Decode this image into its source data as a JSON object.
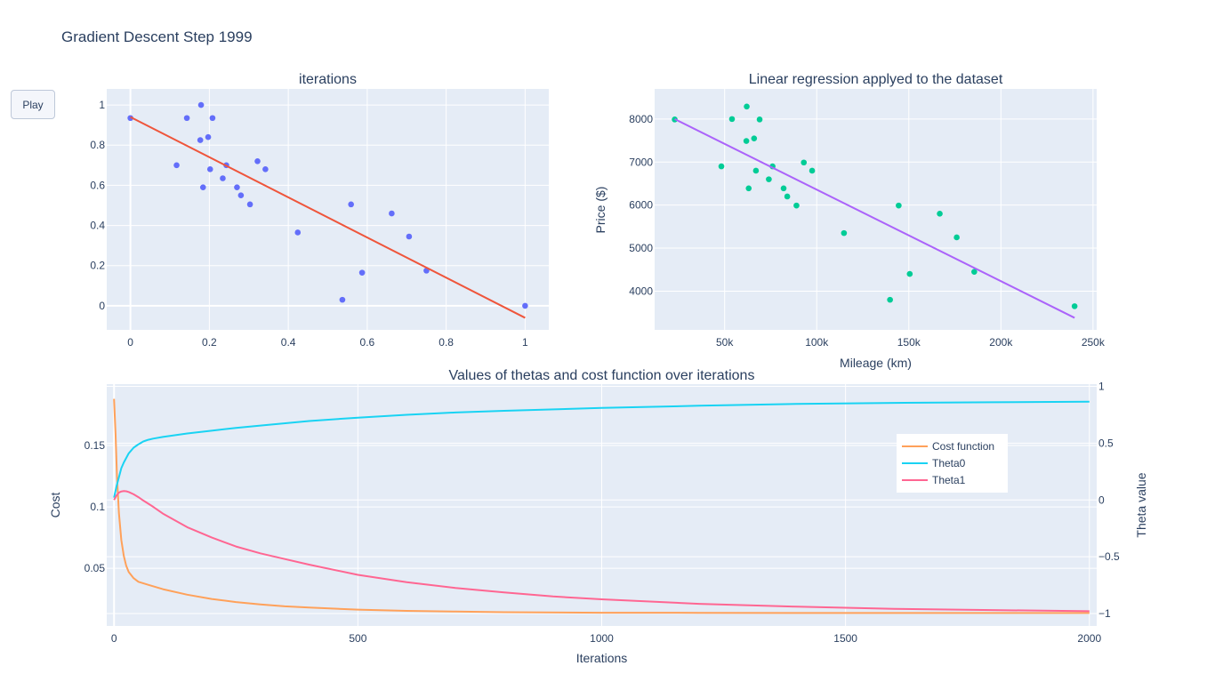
{
  "figure_title": "Gradient Descent Step 1999",
  "play_label": "Play",
  "colors": {
    "plot_bg": "#e5ecf6",
    "grid": "#ffffff",
    "points_left": "#636efa",
    "line_left": "#ef553b",
    "points_right": "#00cc96",
    "line_right": "#ab63fa",
    "cost": "#ffa15a",
    "theta0": "#19d3f3",
    "theta1": "#ff6692"
  },
  "chart_data": [
    {
      "type": "scatter",
      "title": "iterations",
      "xlabel": "",
      "ylabel": "",
      "xlim": [
        -0.06,
        1.06
      ],
      "ylim": [
        -0.12,
        1.08
      ],
      "x_ticks": [
        0,
        0.2,
        0.4,
        0.6,
        0.8,
        1
      ],
      "x_tick_labels": [
        "0",
        "0.2",
        "0.4",
        "0.6",
        "0.8",
        "1"
      ],
      "y_ticks": [
        0,
        0.2,
        0.4,
        0.6,
        0.8,
        1
      ],
      "y_tick_labels": [
        "0",
        "0.2",
        "0.4",
        "0.6",
        "0.8",
        "1"
      ],
      "points": {
        "x": [
          0.0,
          0.117,
          0.143,
          0.177,
          0.179,
          0.184,
          0.197,
          0.202,
          0.208,
          0.234,
          0.243,
          0.27,
          0.28,
          0.303,
          0.322,
          0.342,
          0.424,
          0.537,
          0.559,
          0.587,
          0.662,
          0.706,
          0.75,
          1.0
        ],
        "y": [
          0.935,
          0.7,
          0.935,
          0.825,
          1.0,
          0.59,
          0.84,
          0.68,
          0.935,
          0.635,
          0.7,
          0.59,
          0.55,
          0.505,
          0.72,
          0.68,
          0.365,
          0.03,
          0.505,
          0.165,
          0.46,
          0.345,
          0.175,
          0.0
        ]
      },
      "line": {
        "x": [
          0,
          1
        ],
        "y": [
          0.94,
          -0.06
        ]
      }
    },
    {
      "type": "scatter",
      "title": "Linear regression applyed to the dataset",
      "xlabel": "Mileage (km)",
      "ylabel": "Price ($)",
      "xlim": [
        12000,
        252000
      ],
      "ylim": [
        3100,
        8700
      ],
      "x_ticks": [
        50000,
        100000,
        150000,
        200000,
        250000
      ],
      "x_tick_labels": [
        "50k",
        "100k",
        "150k",
        "200k",
        "250k"
      ],
      "y_ticks": [
        4000,
        5000,
        6000,
        7000,
        8000
      ],
      "y_tick_labels": [
        "4000",
        "5000",
        "6000",
        "7000",
        "8000"
      ],
      "points": {
        "x": [
          22899,
          48235,
          54000,
          61789,
          62000,
          63060,
          66000,
          67000,
          69000,
          74000,
          76025,
          82029,
          84000,
          89000,
          93000,
          97500,
          114800,
          139800,
          144500,
          150500,
          166800,
          176000,
          185530,
          240000
        ],
        "y": [
          7990,
          6900,
          8000,
          7490,
          8290,
          6390,
          7550,
          6800,
          7990,
          6600,
          6900,
          6390,
          6200,
          5990,
          6990,
          6800,
          5350,
          3800,
          5990,
          4400,
          5800,
          5250,
          4450,
          3650
        ]
      },
      "line": {
        "x": [
          22899,
          240000
        ],
        "y": [
          8000,
          3380
        ]
      }
    },
    {
      "type": "line",
      "title": "Values of thetas and cost function over iterations",
      "xlabel": "Iterations",
      "ylabel": "Cost",
      "y2label": "Theta value",
      "xlim": [
        -15,
        2015
      ],
      "ylim": [
        0.003,
        0.2
      ],
      "y2lim": [
        -1.11,
        1.02
      ],
      "x_ticks": [
        0,
        500,
        1000,
        1500,
        2000
      ],
      "x_tick_labels": [
        "0",
        "500",
        "1000",
        "1500",
        "2000"
      ],
      "y_ticks": [
        0.05,
        0.1,
        0.15
      ],
      "y_tick_labels": [
        "0.05",
        "0.1",
        "0.15"
      ],
      "y2_ticks": [
        1,
        0.5,
        0,
        -0.5,
        -1
      ],
      "y2_tick_labels": [
        "1",
        "0.5",
        "0",
        "−0.5",
        "−1"
      ],
      "legend": "top-right",
      "series": [
        {
          "name": "Cost function",
          "axis": "y",
          "x": [
            0,
            3,
            6,
            10,
            15,
            20,
            25,
            30,
            40,
            50,
            70,
            100,
            150,
            200,
            250,
            300,
            350,
            400,
            500,
            600,
            700,
            800,
            1000,
            1200,
            1400,
            1600,
            1800,
            2000
          ],
          "y": [
            0.188,
            0.16,
            0.125,
            0.095,
            0.073,
            0.06,
            0.052,
            0.047,
            0.042,
            0.039,
            0.0365,
            0.033,
            0.0285,
            0.025,
            0.0225,
            0.0205,
            0.019,
            0.018,
            0.0163,
            0.0153,
            0.0147,
            0.0142,
            0.0138,
            0.0137,
            0.0136,
            0.0136,
            0.0136,
            0.0136
          ]
        },
        {
          "name": "Theta0",
          "axis": "y2",
          "x": [
            0,
            5,
            10,
            15,
            20,
            30,
            40,
            50,
            60,
            70,
            80,
            100,
            150,
            200,
            250,
            300,
            400,
            500,
            600,
            700,
            800,
            1000,
            1200,
            1400,
            1600,
            1800,
            2000
          ],
          "y": [
            0.02,
            0.12,
            0.2,
            0.28,
            0.33,
            0.41,
            0.46,
            0.49,
            0.515,
            0.53,
            0.54,
            0.555,
            0.585,
            0.61,
            0.635,
            0.655,
            0.695,
            0.725,
            0.75,
            0.77,
            0.785,
            0.81,
            0.83,
            0.845,
            0.855,
            0.86,
            0.865
          ]
        },
        {
          "name": "Theta1",
          "axis": "y2",
          "x": [
            0,
            5,
            10,
            15,
            20,
            25,
            30,
            40,
            50,
            60,
            80,
            100,
            150,
            200,
            250,
            300,
            350,
            400,
            500,
            600,
            700,
            800,
            900,
            1000,
            1200,
            1400,
            1600,
            1800,
            2000
          ],
          "y": [
            0.0,
            0.04,
            0.065,
            0.075,
            0.078,
            0.076,
            0.07,
            0.05,
            0.025,
            -0.005,
            -0.06,
            -0.12,
            -0.24,
            -0.33,
            -0.41,
            -0.47,
            -0.52,
            -0.57,
            -0.66,
            -0.725,
            -0.775,
            -0.815,
            -0.85,
            -0.875,
            -0.915,
            -0.94,
            -0.96,
            -0.97,
            -0.98
          ]
        }
      ]
    }
  ]
}
